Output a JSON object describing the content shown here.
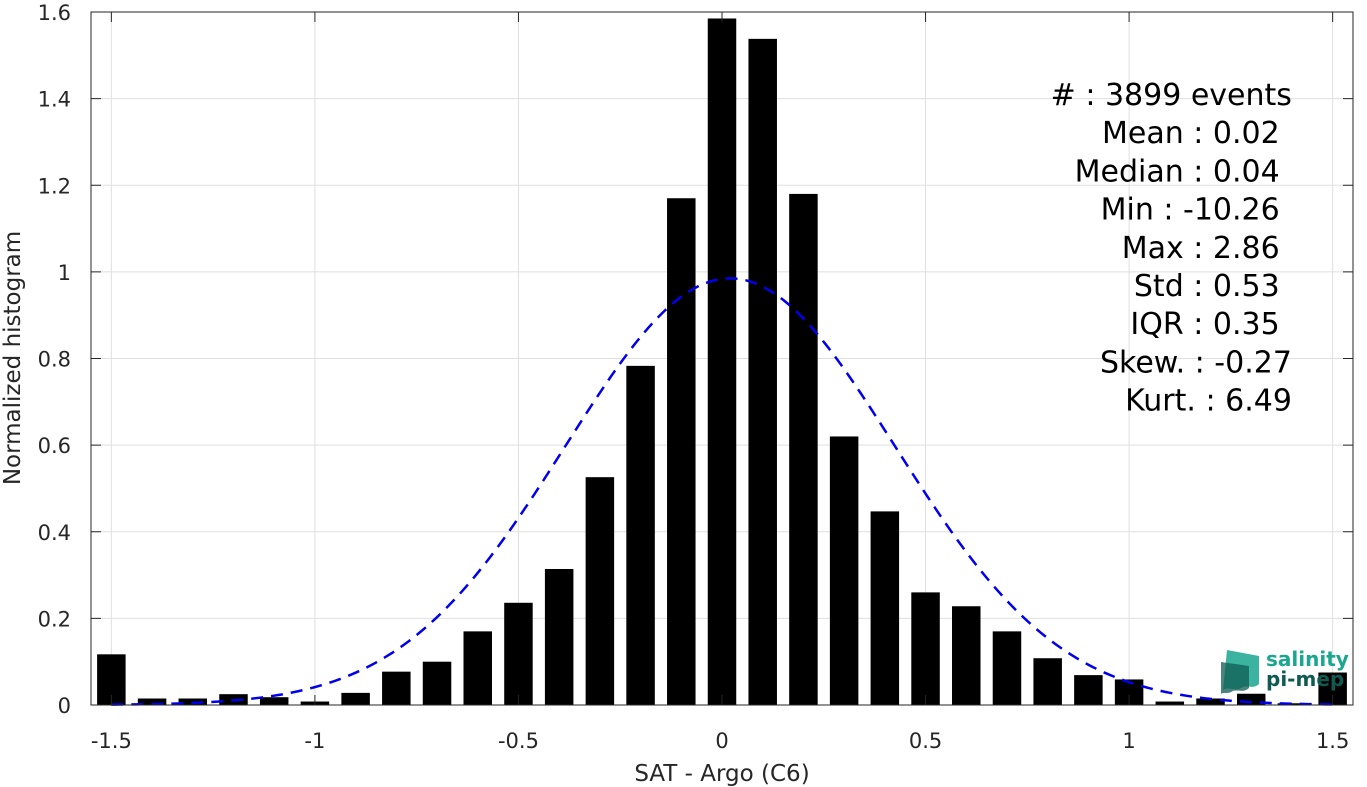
{
  "chart_data": {
    "type": "bar",
    "xlabel": "SAT - Argo (C6)",
    "ylabel": "Normalized histogram",
    "xlim": [
      -1.55,
      1.55
    ],
    "ylim": [
      0,
      1.6
    ],
    "grid": true,
    "x_ticks": [
      -1.5,
      -1,
      -0.5,
      0,
      0.5,
      1,
      1.5
    ],
    "x_tick_labels": [
      "-1.5",
      "-1",
      "-0.5",
      "0",
      "0.5",
      "1",
      "1.5"
    ],
    "y_ticks": [
      0,
      0.2,
      0.4,
      0.6,
      0.8,
      1,
      1.2,
      1.4,
      1.6
    ],
    "y_tick_labels": [
      "0",
      "0.2",
      "0.4",
      "0.6",
      "0.8",
      "1",
      "1.2",
      "1.4",
      "1.6"
    ],
    "bar_width": 0.07,
    "bar_color": "#000000",
    "bars": {
      "x": [
        -1.5,
        -1.4,
        -1.3,
        -1.2,
        -1.1,
        -1.0,
        -0.9,
        -0.8,
        -0.7,
        -0.6,
        -0.5,
        -0.4,
        -0.3,
        -0.2,
        -0.1,
        0.0,
        0.1,
        0.2,
        0.3,
        0.4,
        0.5,
        0.6,
        0.7,
        0.8,
        0.9,
        1.0,
        1.1,
        1.2,
        1.3,
        1.4,
        1.5
      ],
      "values": [
        0.117,
        0.015,
        0.015,
        0.025,
        0.018,
        0.008,
        0.028,
        0.077,
        0.1,
        0.17,
        0.236,
        0.314,
        0.526,
        0.783,
        1.17,
        1.585,
        1.538,
        1.18,
        0.62,
        0.447,
        0.26,
        0.228,
        0.17,
        0.108,
        0.069,
        0.059,
        0.008,
        0.015,
        0.026,
        0.004,
        0.075
      ]
    },
    "fit_curve": {
      "style": "dashed",
      "color": "#0000ee",
      "mean": 0.02,
      "std": 0.405,
      "peak": 0.985
    },
    "stats": [
      {
        "label": "#  : 3899 events",
        "anchor": "end",
        "x": 1.4
      },
      {
        "label": "Mean : 0.02",
        "anchor": "end",
        "x": 1.37
      },
      {
        "label": "Median : 0.04",
        "anchor": "end",
        "x": 1.37
      },
      {
        "label": "Min : -10.26",
        "anchor": "end",
        "x": 1.37
      },
      {
        "label": "Max : 2.86",
        "anchor": "end",
        "x": 1.37
      },
      {
        "label": "Std : 0.53",
        "anchor": "end",
        "x": 1.37
      },
      {
        "label": "IQR : 0.35",
        "anchor": "end",
        "x": 1.37
      },
      {
        "label": "Skew. : -0.27",
        "anchor": "end",
        "x": 1.4
      },
      {
        "label": "Kurt. : 6.49",
        "anchor": "end",
        "x": 1.4
      }
    ]
  },
  "logo": {
    "line1": "salinity",
    "line2": "pi-mep",
    "color_teal": "#1aa68f",
    "color_dark": "#0f5b52"
  }
}
